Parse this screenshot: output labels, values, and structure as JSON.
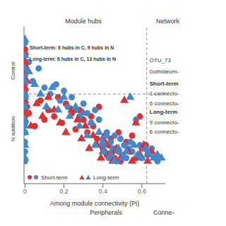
{
  "chart_data": {
    "type": "scatter",
    "x_label": "Among module connectivity (Pi)",
    "xlim": [
      -0.005,
      0.72
    ],
    "xticks": [
      0.0,
      0.2,
      0.4,
      0.6
    ],
    "ylim": [
      -0.3,
      4.6
    ],
    "tick_labels": "x",
    "grid": false,
    "legend": "lower left",
    "vlines": [
      0.625
    ],
    "hlines": [
      2.5
    ],
    "annotations": [
      "Control",
      "N addition",
      "Module hubs",
      "Network",
      "Peripherals",
      "Conne-",
      "Short-term: 6 hubs in C, 9 hubs in N",
      "Long-term: 6 hubs in C, 13 hubs in N",
      "OTU_73",
      "Dothideom-",
      "Short-term",
      "1 connecto-",
      "6 connecto-",
      "Long-term",
      "9 connecto-",
      "6 connecto-"
    ],
    "series": [
      {
        "name": "Short-term",
        "color": "#e03030",
        "marker": "circle",
        "x": [
          0.0,
          0.0,
          0.0,
          0.0,
          0.0,
          0.0,
          0.0,
          0.0,
          0.0,
          0.0,
          0.0,
          0.0,
          0.01,
          0.02,
          0.05,
          0.08,
          0.1,
          0.12,
          0.15,
          0.17,
          0.19,
          0.21,
          0.24,
          0.26,
          0.28,
          0.3,
          0.32,
          0.34,
          0.35,
          0.37,
          0.38,
          0.4,
          0.4,
          0.41,
          0.42,
          0.43,
          0.44,
          0.45,
          0.46,
          0.47,
          0.48,
          0.49,
          0.5,
          0.51,
          0.52,
          0.54,
          0.55,
          0.57,
          0.59,
          0.6,
          0.62,
          0.63
        ],
        "values": [
          2.6,
          2.9,
          3.1,
          3.3,
          3.5,
          3.7,
          3.9,
          2.4,
          2.2,
          2.0,
          1.8,
          1.6,
          2.1,
          1.9,
          1.5,
          2.3,
          1.7,
          2.0,
          1.8,
          2.4,
          1.6,
          2.2,
          1.9,
          1.4,
          2.0,
          1.7,
          1.3,
          1.8,
          1.5,
          1.1,
          2.1,
          0.8,
          1.0,
          1.2,
          0.6,
          0.9,
          1.1,
          0.7,
          0.5,
          0.8,
          1.3,
          0.4,
          0.6,
          0.9,
          1.0,
          0.7,
          1.2,
          0.5,
          1.8,
          0.8,
          0.9,
          0.6
        ]
      },
      {
        "color": "#4488cc",
        "marker": "circle",
        "x": [
          0.0,
          0.0,
          0.0,
          0.0,
          0.0,
          0.0,
          0.0,
          0.0,
          0.0,
          0.0,
          0.0,
          0.0,
          0.0,
          0.02,
          0.04,
          0.07,
          0.1,
          0.13,
          0.16,
          0.18,
          0.2,
          0.22,
          0.24,
          0.26,
          0.28,
          0.3,
          0.32,
          0.34,
          0.36,
          0.38,
          0.4,
          0.4,
          0.41,
          0.42,
          0.43,
          0.44,
          0.45,
          0.46,
          0.47,
          0.48,
          0.49,
          0.5,
          0.51,
          0.52,
          0.53,
          0.54,
          0.55,
          0.57,
          0.58,
          0.59,
          0.6,
          0.61,
          0.63,
          0.65,
          0.67,
          0.68
        ],
        "values": [
          0.4,
          0.7,
          1.0,
          1.3,
          1.6,
          1.9,
          2.2,
          2.5,
          2.8,
          3.1,
          3.4,
          3.7,
          4.1,
          3.5,
          2.9,
          3.3,
          2.7,
          2.5,
          2.8,
          2.3,
          2.6,
          2.1,
          2.4,
          2.0,
          1.8,
          2.2,
          1.9,
          1.6,
          2.0,
          1.7,
          0.9,
          1.1,
          0.7,
          1.3,
          0.5,
          1.0,
          0.8,
          1.2,
          0.4,
          0.7,
          1.1,
          0.6,
          0.9,
          0.5,
          0.8,
          1.0,
          0.7,
          1.7,
          0.6,
          0.9,
          0.5,
          0.8,
          0.7,
          0.8,
          0.5,
          0.4
        ]
      },
      {
        "name": "Long-term",
        "color": "#e03030",
        "marker": "triangle",
        "x": [
          0.0,
          0.0,
          0.0,
          0.0,
          0.0,
          0.0,
          0.0,
          0.0,
          0.0,
          0.0,
          0.01,
          0.03,
          0.06,
          0.09,
          0.12,
          0.15,
          0.18,
          0.21,
          0.24,
          0.27,
          0.29,
          0.31,
          0.33,
          0.35,
          0.37,
          0.39,
          0.4,
          0.41,
          0.43,
          0.45,
          0.47,
          0.49,
          0.51,
          0.53,
          0.55,
          0.57,
          0.59,
          0.61,
          0.63,
          0.65
        ],
        "values": [
          3.2,
          3.5,
          3.8,
          2.7,
          2.5,
          2.3,
          2.1,
          1.9,
          1.7,
          3.4,
          2.9,
          1.5,
          2.2,
          1.8,
          2.4,
          2.0,
          1.6,
          1.3,
          2.0,
          1.7,
          1.1,
          1.5,
          0.8,
          1.2,
          0.9,
          0.5,
          0.7,
          1.0,
          0.6,
          0.4,
          0.8,
          0.5,
          2.3,
          0.7,
          0.4,
          1.6,
          0.6,
          0.9,
          0.4,
          0.7
        ]
      },
      {
        "color": "#4488cc",
        "marker": "triangle",
        "x": [
          0.0,
          0.0,
          0.0,
          0.0,
          0.0,
          0.0,
          0.0,
          0.0,
          0.0,
          0.0,
          0.0,
          0.0,
          0.02,
          0.05,
          0.08,
          0.11,
          0.14,
          0.17,
          0.2,
          0.23,
          0.26,
          0.28,
          0.3,
          0.32,
          0.34,
          0.36,
          0.38,
          0.4,
          0.4,
          0.42,
          0.44,
          0.46,
          0.48,
          0.5,
          0.52,
          0.54,
          0.56,
          0.58,
          0.6,
          0.62,
          0.64,
          0.66,
          0.68,
          0.7
        ],
        "values": [
          0.5,
          0.9,
          1.3,
          1.7,
          2.1,
          2.5,
          2.9,
          3.3,
          3.7,
          4.2,
          2.4,
          1.5,
          3.2,
          2.8,
          2.5,
          2.1,
          2.7,
          2.0,
          2.4,
          1.8,
          2.1,
          1.5,
          1.9,
          1.2,
          1.6,
          0.9,
          1.3,
          0.7,
          1.0,
          1.2,
          0.6,
          0.4,
          0.8,
          0.5,
          0.7,
          2.4,
          0.9,
          0.6,
          0.5,
          0.8,
          0.6,
          0.5,
          0.6,
          0.5
        ]
      }
    ]
  }
}
